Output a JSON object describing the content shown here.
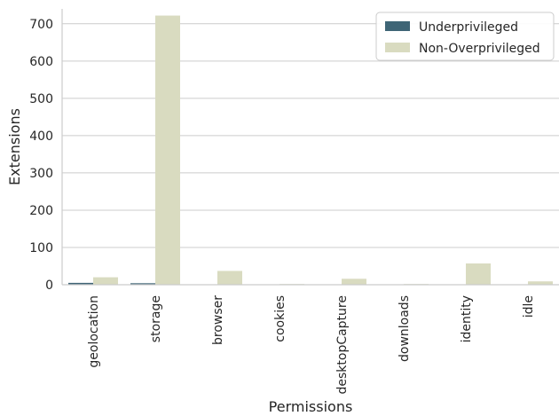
{
  "chart_data": {
    "type": "bar",
    "xlabel": "Permissions",
    "ylabel": "Extensions",
    "ylim": [
      0,
      740
    ],
    "yticks": [
      0,
      100,
      200,
      300,
      400,
      500,
      600,
      700
    ],
    "grid": "horizontal",
    "legend_position": "top-right",
    "categories": [
      "geolocation",
      "storage",
      "browser",
      "cookies",
      "desktopCapture",
      "downloads",
      "identity",
      "idle"
    ],
    "series": [
      {
        "name": "Underprivileged",
        "color": "#3f6576",
        "values": [
          5,
          4,
          1,
          1,
          1,
          1,
          1,
          1
        ]
      },
      {
        "name": "Non-Overprivileged",
        "color": "#d9dbc0",
        "values": [
          20,
          722,
          37,
          2,
          16,
          2,
          57,
          9
        ]
      }
    ]
  }
}
